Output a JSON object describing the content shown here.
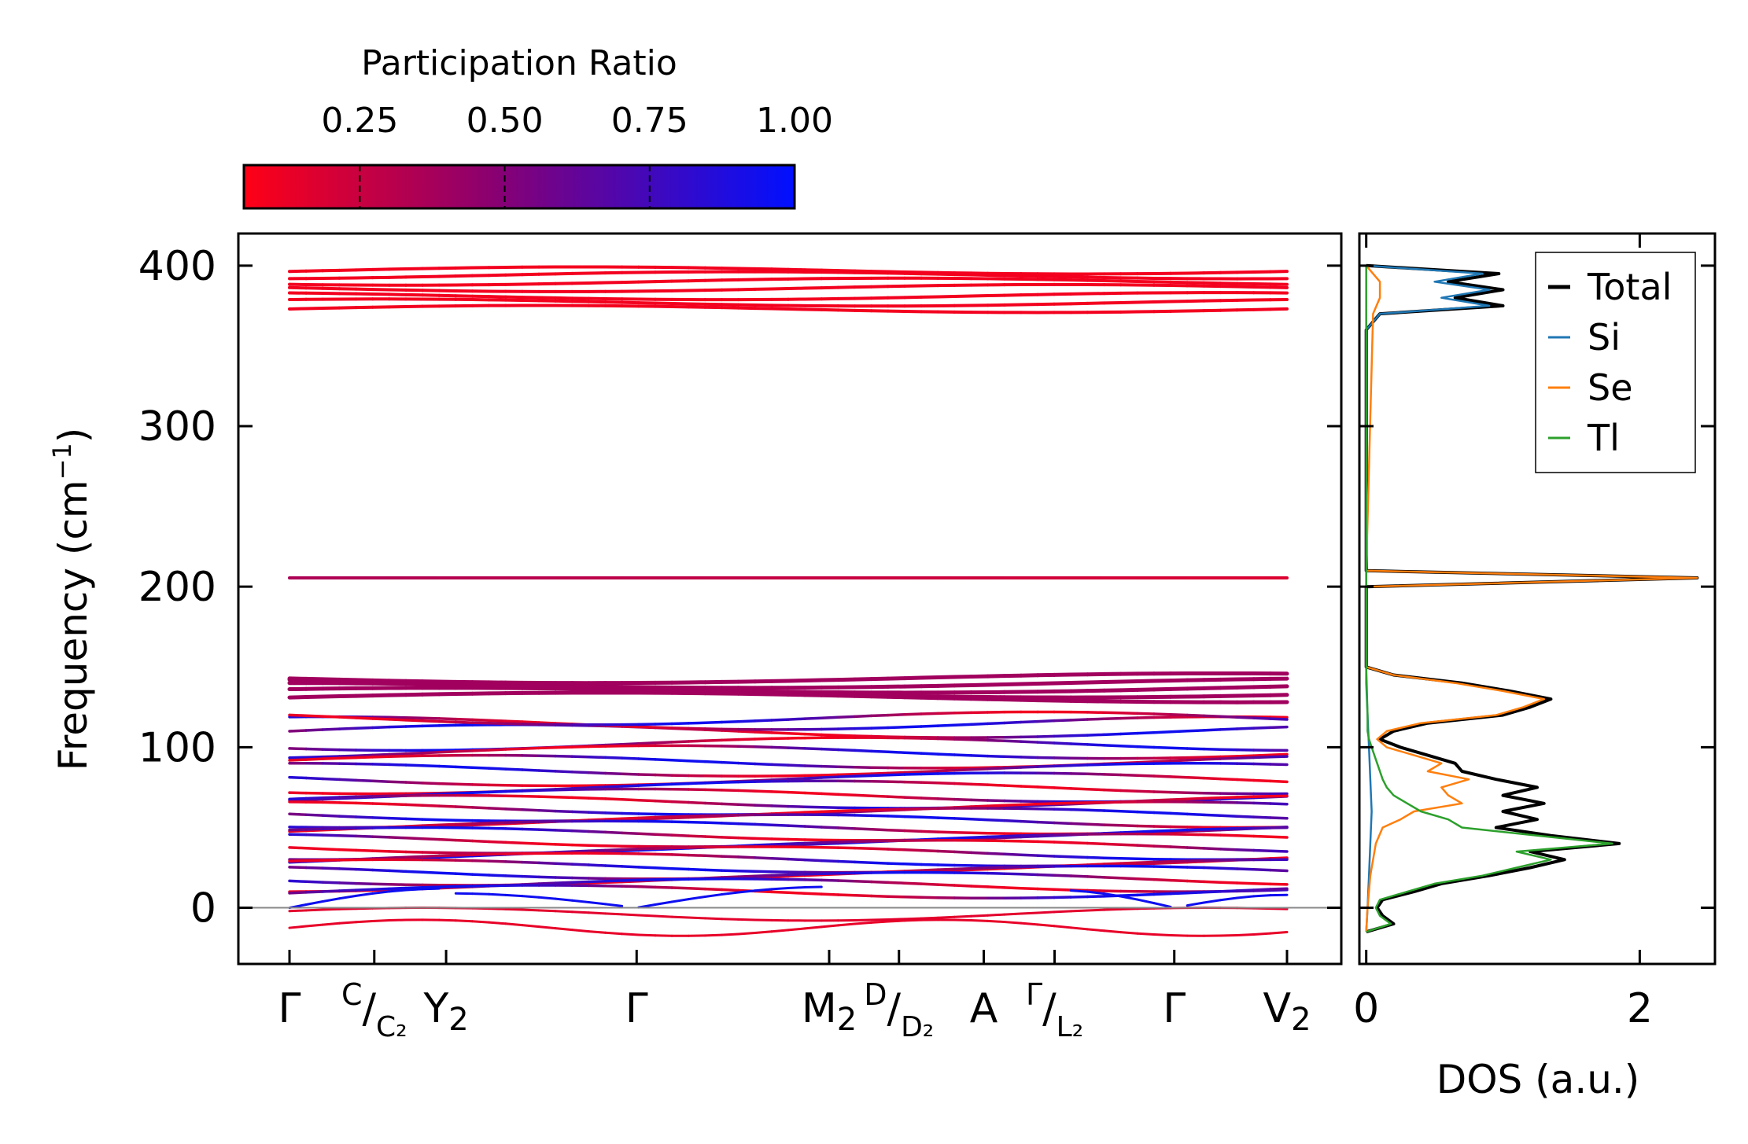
{
  "chart_data": [
    {
      "type": "line",
      "panel": "phonon-band-structure",
      "ylabel_main": "Frequency (cm",
      "ylabel_sup": "−1",
      "ylabel_tail": ")",
      "ylim": [
        -35,
        420
      ],
      "yticks": [
        0,
        100,
        200,
        300,
        400
      ],
      "color_by": "participation_ratio",
      "high_symmetry_path": [
        {
          "position": 0.0,
          "main": "Γ",
          "sub": "",
          "top": "",
          "bottom": ""
        },
        {
          "position": 0.085,
          "main": "",
          "sub": "",
          "top": "C",
          "bottom": "C₂"
        },
        {
          "position": 0.157,
          "main": "Y",
          "sub": "2",
          "top": "",
          "bottom": ""
        },
        {
          "position": 0.348,
          "main": "Γ",
          "sub": "",
          "top": "",
          "bottom": ""
        },
        {
          "position": 0.541,
          "main": "M",
          "sub": "2",
          "top": "",
          "bottom": ""
        },
        {
          "position": 0.611,
          "main": "",
          "sub": "",
          "top": "D",
          "bottom": "D₂"
        },
        {
          "position": 0.696,
          "main": "A",
          "sub": "",
          "top": "",
          "bottom": ""
        },
        {
          "position": 0.767,
          "main": "",
          "sub": "",
          "top": "Γ",
          "bottom": "L₂"
        },
        {
          "position": 0.887,
          "main": "Γ",
          "sub": "",
          "top": "",
          "bottom": ""
        },
        {
          "position": 1.0,
          "main": "V",
          "sub": "2",
          "top": "",
          "bottom": ""
        }
      ],
      "break_at": 0.767,
      "bands_approx": {
        "high_optical_cm1": [
          373,
          377,
          381,
          386,
          390,
          394,
          397
        ],
        "mid_optical_cm1": [
          205.5
        ],
        "upper_group_cm1": [
          131,
          134,
          137,
          140,
          143
        ],
        "lower_group_cm1": [
          110,
          115,
          118,
          102,
          97,
          91,
          86,
          80,
          75,
          70,
          66,
          62,
          58,
          54,
          50,
          46,
          42,
          38,
          34,
          30,
          26,
          22,
          18,
          14,
          10
        ],
        "soft_modes_min_cm1": -15
      }
    },
    {
      "type": "colorbar",
      "title": "Participation Ratio",
      "range": [
        0.05,
        1.0
      ],
      "ticks": [
        0.25,
        0.5,
        0.75,
        1.0
      ],
      "tick_labels": [
        "0.25",
        "0.50",
        "0.75",
        "1.00"
      ],
      "colors": {
        "low": "#ff0016",
        "mid": "#8a0070",
        "high": "#0010ff"
      }
    },
    {
      "type": "line",
      "panel": "density-of-states",
      "xlabel": "DOS (a.u.)",
      "xlim": [
        -0.05,
        2.55
      ],
      "xticks": [
        0,
        2
      ],
      "xtick_labels": [
        "0",
        "2"
      ],
      "ylim": [
        -35,
        420
      ],
      "legend_position": "top-right",
      "series": [
        {
          "name": "Total",
          "color": "#000000",
          "y": [
            -15,
            -10,
            -5,
            0,
            5,
            10,
            15,
            20,
            25,
            30,
            35,
            40,
            45,
            50,
            55,
            60,
            65,
            70,
            75,
            80,
            85,
            90,
            95,
            100,
            105,
            110,
            115,
            120,
            125,
            130,
            135,
            140,
            145,
            150,
            200,
            205.5,
            210,
            360,
            370,
            375,
            380,
            385,
            390,
            395,
            400
          ],
          "x": [
            0.0,
            0.2,
            0.12,
            0.08,
            0.12,
            0.35,
            0.55,
            0.9,
            1.2,
            1.45,
            1.2,
            1.85,
            1.35,
            0.95,
            1.25,
            1.0,
            1.3,
            1.0,
            1.25,
            0.95,
            0.7,
            0.65,
            0.45,
            0.25,
            0.1,
            0.2,
            0.45,
            1.0,
            1.2,
            1.35,
            1.05,
            0.7,
            0.2,
            0.0,
            0.0,
            2.42,
            0.0,
            0.0,
            0.1,
            1.0,
            0.65,
            1.0,
            0.6,
            0.97,
            0.0
          ]
        },
        {
          "name": "Si",
          "color": "#1f77b4",
          "y": [
            -15,
            0,
            20,
            40,
            60,
            80,
            100,
            120,
            140,
            200,
            360,
            370,
            375,
            380,
            385,
            390,
            395,
            400
          ],
          "x": [
            0.0,
            0.01,
            0.02,
            0.03,
            0.04,
            0.03,
            0.02,
            0.01,
            0.0,
            0.0,
            0.0,
            0.1,
            0.9,
            0.55,
            0.9,
            0.5,
            0.85,
            0.0
          ]
        },
        {
          "name": "Se",
          "color": "#ff7f0e",
          "y": [
            -15,
            0,
            20,
            40,
            50,
            55,
            60,
            65,
            70,
            75,
            80,
            85,
            90,
            95,
            100,
            105,
            110,
            115,
            120,
            125,
            130,
            135,
            140,
            145,
            150,
            200,
            205.5,
            210,
            370,
            380,
            390,
            400
          ],
          "x": [
            0.0,
            0.01,
            0.03,
            0.07,
            0.12,
            0.25,
            0.35,
            0.7,
            0.6,
            0.55,
            0.75,
            0.45,
            0.55,
            0.35,
            0.15,
            0.08,
            0.15,
            0.4,
            0.95,
            1.15,
            1.3,
            1.0,
            0.65,
            0.2,
            0.0,
            0.0,
            2.42,
            0.0,
            0.05,
            0.1,
            0.1,
            0.0
          ]
        },
        {
          "name": "Tl",
          "color": "#2ca02c",
          "y": [
            -15,
            -10,
            -5,
            0,
            5,
            10,
            15,
            20,
            25,
            30,
            35,
            40,
            45,
            50,
            55,
            60,
            65,
            70,
            75,
            80,
            85,
            90,
            95,
            100,
            105,
            110,
            120,
            150,
            400
          ],
          "x": [
            0.0,
            0.18,
            0.1,
            0.07,
            0.1,
            0.3,
            0.5,
            0.85,
            1.1,
            1.35,
            1.1,
            1.8,
            1.25,
            0.7,
            0.6,
            0.4,
            0.3,
            0.2,
            0.15,
            0.12,
            0.1,
            0.08,
            0.06,
            0.04,
            0.02,
            0.01,
            0.01,
            0.0,
            0.0
          ]
        }
      ]
    }
  ]
}
